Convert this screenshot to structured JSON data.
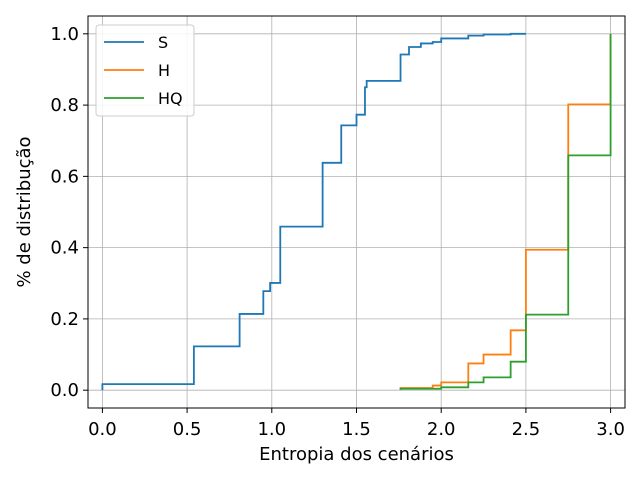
{
  "chart_data": {
    "type": "line",
    "step": true,
    "xlabel": "Entropia dos cenários",
    "ylabel": "% de distribução",
    "xlim": [
      -0.085,
      3.085
    ],
    "ylim": [
      -0.05,
      1.05
    ],
    "xticks": [
      0.0,
      0.5,
      1.0,
      1.5,
      2.0,
      2.5,
      3.0
    ],
    "xtick_labels": [
      "0.0",
      "0.5",
      "1.0",
      "1.5",
      "2.0",
      "2.5",
      "3.0"
    ],
    "yticks": [
      0.0,
      0.2,
      0.4,
      0.6,
      0.8,
      1.0
    ],
    "ytick_labels": [
      "0.0",
      "0.2",
      "0.4",
      "0.6",
      "0.8",
      "1.0"
    ],
    "grid": true,
    "legend": "top-left",
    "series": [
      {
        "name": "S",
        "color": "#1f77b4",
        "points": [
          [
            0.0,
            0.0
          ],
          [
            0.0,
            0.017
          ],
          [
            0.54,
            0.017
          ],
          [
            0.54,
            0.123
          ],
          [
            0.81,
            0.123
          ],
          [
            0.81,
            0.214
          ],
          [
            0.95,
            0.214
          ],
          [
            0.95,
            0.278
          ],
          [
            0.99,
            0.278
          ],
          [
            0.99,
            0.301
          ],
          [
            1.05,
            0.301
          ],
          [
            1.05,
            0.459
          ],
          [
            1.3,
            0.459
          ],
          [
            1.3,
            0.638
          ],
          [
            1.41,
            0.638
          ],
          [
            1.41,
            0.743
          ],
          [
            1.5,
            0.743
          ],
          [
            1.5,
            0.773
          ],
          [
            1.55,
            0.773
          ],
          [
            1.55,
            0.85
          ],
          [
            1.56,
            0.85
          ],
          [
            1.56,
            0.868
          ],
          [
            1.76,
            0.868
          ],
          [
            1.76,
            0.942
          ],
          [
            1.81,
            0.942
          ],
          [
            1.81,
            0.963
          ],
          [
            1.88,
            0.963
          ],
          [
            1.88,
            0.973
          ],
          [
            1.95,
            0.973
          ],
          [
            1.95,
            0.977
          ],
          [
            2.0,
            0.977
          ],
          [
            2.0,
            0.987
          ],
          [
            2.16,
            0.987
          ],
          [
            2.16,
            0.995
          ],
          [
            2.25,
            0.995
          ],
          [
            2.25,
            0.998
          ],
          [
            2.41,
            0.998
          ],
          [
            2.41,
            1.0
          ],
          [
            2.5,
            1.0
          ]
        ]
      },
      {
        "name": "H",
        "color": "#ff7f0e",
        "points": [
          [
            1.76,
            0.002
          ],
          [
            1.76,
            0.006
          ],
          [
            1.95,
            0.006
          ],
          [
            1.95,
            0.013
          ],
          [
            2.0,
            0.013
          ],
          [
            2.0,
            0.022
          ],
          [
            2.16,
            0.022
          ],
          [
            2.16,
            0.075
          ],
          [
            2.25,
            0.075
          ],
          [
            2.25,
            0.1
          ],
          [
            2.41,
            0.1
          ],
          [
            2.41,
            0.168
          ],
          [
            2.5,
            0.168
          ],
          [
            2.5,
            0.394
          ],
          [
            2.75,
            0.394
          ],
          [
            2.75,
            0.802
          ],
          [
            3.0,
            0.802
          ],
          [
            3.0,
            1.0
          ]
        ]
      },
      {
        "name": "HQ",
        "color": "#2ca02c",
        "points": [
          [
            1.76,
            0.001
          ],
          [
            1.76,
            0.004
          ],
          [
            2.0,
            0.004
          ],
          [
            2.0,
            0.008
          ],
          [
            2.16,
            0.008
          ],
          [
            2.16,
            0.022
          ],
          [
            2.25,
            0.022
          ],
          [
            2.25,
            0.036
          ],
          [
            2.41,
            0.036
          ],
          [
            2.41,
            0.08
          ],
          [
            2.5,
            0.08
          ],
          [
            2.5,
            0.212
          ],
          [
            2.75,
            0.212
          ],
          [
            2.75,
            0.659
          ],
          [
            3.0,
            0.659
          ],
          [
            3.0,
            1.0
          ]
        ]
      }
    ]
  }
}
